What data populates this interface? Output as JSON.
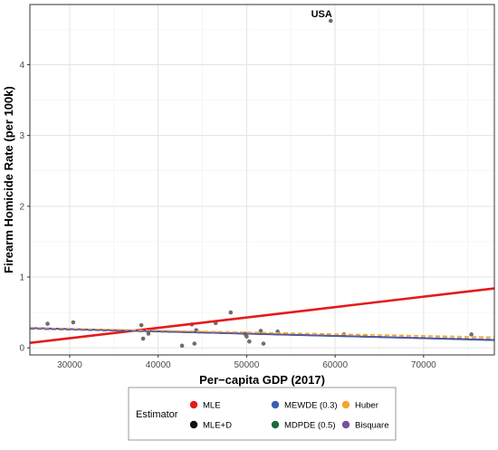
{
  "chart_data": {
    "type": "scatter",
    "xlabel": "Per−capita GDP (2017)",
    "ylabel": "Firearm Homicide Rate (per 100k)",
    "xlim": [
      25500,
      78000
    ],
    "ylim": [
      -0.1,
      4.85
    ],
    "xticks": [
      30000,
      40000,
      50000,
      60000,
      70000
    ],
    "yticks": [
      0,
      1,
      2,
      3,
      4
    ],
    "grid": true,
    "points": [
      {
        "x": 27500,
        "y": 0.34
      },
      {
        "x": 30400,
        "y": 0.36
      },
      {
        "x": 38100,
        "y": 0.32
      },
      {
        "x": 38300,
        "y": 0.13
      },
      {
        "x": 38900,
        "y": 0.2
      },
      {
        "x": 42700,
        "y": 0.03
      },
      {
        "x": 43800,
        "y": 0.33
      },
      {
        "x": 44100,
        "y": 0.06
      },
      {
        "x": 44300,
        "y": 0.25
      },
      {
        "x": 46500,
        "y": 0.35
      },
      {
        "x": 48200,
        "y": 0.5
      },
      {
        "x": 49800,
        "y": 0.2
      },
      {
        "x": 50000,
        "y": 0.16
      },
      {
        "x": 50300,
        "y": 0.09
      },
      {
        "x": 51600,
        "y": 0.24
      },
      {
        "x": 51900,
        "y": 0.06
      },
      {
        "x": 53500,
        "y": 0.23
      },
      {
        "x": 59500,
        "y": 4.62
      },
      {
        "x": 61000,
        "y": 0.19
      },
      {
        "x": 75400,
        "y": 0.19
      }
    ],
    "annotations": [
      {
        "text": "USA",
        "x": 59500,
        "y": 4.62
      }
    ],
    "lines": [
      {
        "name": "MLE",
        "color": "#e41a1c",
        "x": [
          25500,
          78000
        ],
        "y": [
          0.07,
          0.84
        ],
        "dash": "solid",
        "width": 2.6
      },
      {
        "name": "MLE+D",
        "color": "#111111",
        "x": [
          25500,
          78000
        ],
        "y": [
          0.28,
          0.11
        ],
        "dash": "solid",
        "width": 1.6
      },
      {
        "name": "MEWDE (0.3)",
        "color": "#3a5fb0",
        "x": [
          25500,
          78000
        ],
        "y": [
          0.28,
          0.11
        ],
        "dash": "solid",
        "width": 2.0
      },
      {
        "name": "MDPDE (0.5)",
        "color": "#1b6b3a",
        "x": [
          25500,
          78000
        ],
        "y": [
          0.27,
          0.12
        ],
        "dash": "dashed",
        "width": 1.6
      },
      {
        "name": "Huber",
        "color": "#f5a623",
        "x": [
          25500,
          78000
        ],
        "y": [
          0.28,
          0.15
        ],
        "dash": "dashed",
        "width": 1.6
      },
      {
        "name": "Bisquare",
        "color": "#7b4fa0",
        "x": [
          25500,
          78000
        ],
        "y": [
          0.27,
          0.12
        ],
        "dash": "dashed",
        "width": 1.4
      }
    ],
    "legend": {
      "title": "Estimator",
      "position": "bottom",
      "items": [
        {
          "label": "MLE",
          "color": "#e41a1c"
        },
        {
          "label": "MLE+D",
          "color": "#111111"
        },
        {
          "label": "MEWDE (0.3)",
          "color": "#3a5fb0"
        },
        {
          "label": "MDPDE (0.5)",
          "color": "#1b6b3a"
        },
        {
          "label": "Huber",
          "color": "#f5a623"
        },
        {
          "label": "Bisquare",
          "color": "#7b4fa0"
        }
      ]
    }
  }
}
